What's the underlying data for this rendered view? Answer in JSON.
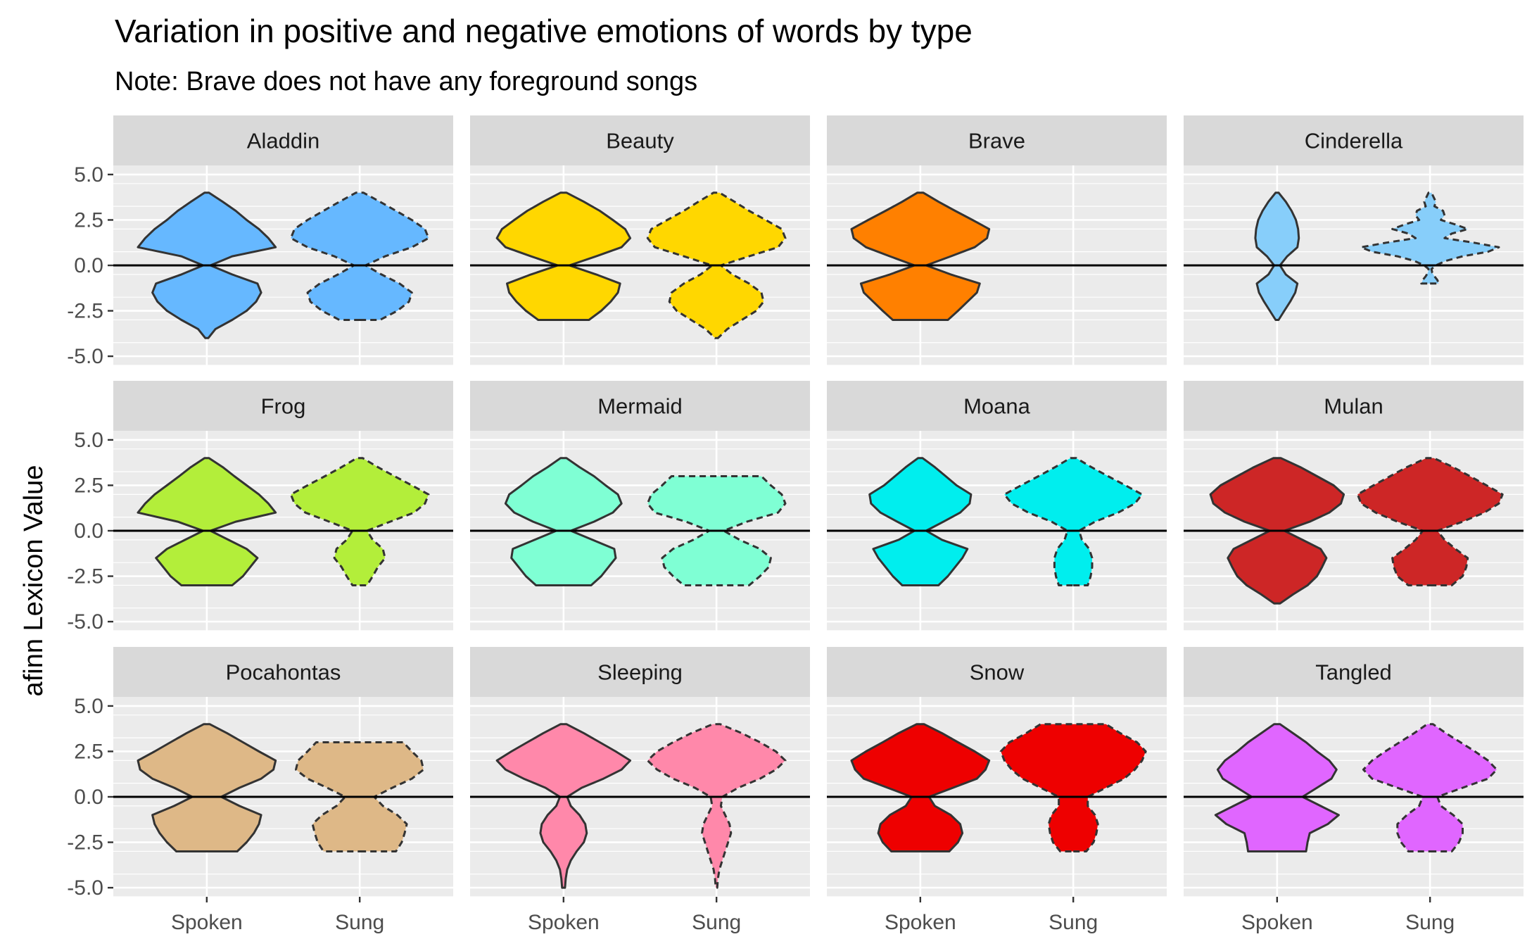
{
  "chart_data": {
    "type": "violin",
    "title": "Variation in positive and negative emotions of words by type",
    "subtitle": "Note: Brave does not have any foreground songs",
    "ylabel": "afinn Lexicon Value",
    "xlabel": "",
    "ylim": [
      -5.5,
      5.5
    ],
    "y_ticks": [
      5.0,
      2.5,
      0.0,
      -2.5,
      -5.0
    ],
    "y_tick_labels": [
      "5.0",
      "2.5",
      "0.0",
      "-2.5",
      "-5.0"
    ],
    "reference_line_y": 0,
    "categories": [
      "Spoken",
      "Sung"
    ],
    "line_styles": {
      "Spoken": "solid",
      "Sung": "dashed"
    },
    "grid": true,
    "legend": "none",
    "panels": [
      {
        "name": "Aladdin",
        "color": "#66B8FF",
        "violins": {
          "Spoken": {
            "y": [
              -4,
              -3.5,
              -3,
              -2.5,
              -2,
              -1.5,
              -1,
              -0.5,
              0,
              0.5,
              1,
              1.5,
              2,
              2.5,
              3,
              3.5,
              4
            ],
            "w": [
              0.02,
              0.12,
              0.35,
              0.55,
              0.68,
              0.75,
              0.7,
              0.35,
              0.05,
              0.35,
              0.95,
              0.85,
              0.72,
              0.55,
              0.4,
              0.22,
              0.03
            ]
          },
          "Sung": {
            "y": [
              -3,
              -2.5,
              -2,
              -1.5,
              -1,
              -0.5,
              0,
              0.5,
              1,
              1.5,
              2,
              2.5,
              3,
              3.5,
              4
            ],
            "w": [
              0.28,
              0.52,
              0.68,
              0.72,
              0.55,
              0.3,
              0.08,
              0.35,
              0.72,
              0.95,
              0.9,
              0.72,
              0.5,
              0.28,
              0.05
            ]
          }
        }
      },
      {
        "name": "Beauty",
        "color": "#FFD700",
        "violins": {
          "Spoken": {
            "y": [
              -3,
              -2.5,
              -2,
              -1.5,
              -1,
              -0.5,
              0,
              0.5,
              1,
              1.5,
              2,
              2.5,
              3,
              3.5,
              4
            ],
            "w": [
              0.35,
              0.52,
              0.65,
              0.75,
              0.78,
              0.45,
              0.08,
              0.45,
              0.8,
              0.92,
              0.85,
              0.68,
              0.5,
              0.28,
              0.04
            ]
          },
          "Sung": {
            "y": [
              -4,
              -3.5,
              -3,
              -2.5,
              -2,
              -1.5,
              -1,
              -0.5,
              0,
              0.5,
              1,
              1.5,
              2,
              2.5,
              3,
              3.5,
              4
            ],
            "w": [
              0.02,
              0.15,
              0.35,
              0.55,
              0.65,
              0.62,
              0.45,
              0.22,
              0.06,
              0.45,
              0.85,
              0.95,
              0.9,
              0.68,
              0.45,
              0.25,
              0.04
            ]
          }
        }
      },
      {
        "name": "Brave",
        "color": "#FF8000",
        "violins": {
          "Spoken": {
            "y": [
              -3,
              -2.5,
              -2,
              -1.5,
              -1,
              -0.5,
              0,
              0.5,
              1,
              1.5,
              2,
              2.5,
              3,
              3.5,
              4
            ],
            "w": [
              0.38,
              0.52,
              0.65,
              0.78,
              0.82,
              0.42,
              0.08,
              0.42,
              0.75,
              0.92,
              0.95,
              0.72,
              0.48,
              0.25,
              0.04
            ]
          }
        }
      },
      {
        "name": "Cinderella",
        "color": "#87CEFA",
        "violins": {
          "Spoken": {
            "y": [
              -3,
              -2.5,
              -2,
              -1.5,
              -1,
              -0.5,
              0,
              0.5,
              1,
              1.5,
              2,
              2.5,
              3,
              3.5,
              4
            ],
            "w": [
              0.02,
              0.1,
              0.18,
              0.25,
              0.28,
              0.12,
              0.04,
              0.14,
              0.28,
              0.3,
              0.29,
              0.26,
              0.2,
              0.12,
              0.02
            ]
          },
          "Sung": {
            "y": [
              -1,
              -0.8,
              -0.6,
              -0.4,
              -0.2,
              0,
              0.25,
              0.5,
              0.75,
              1,
              1.25,
              1.5,
              1.75,
              2,
              2.25,
              2.5,
              2.75,
              3,
              3.25,
              3.5,
              3.75,
              4
            ],
            "w": [
              0.12,
              0.1,
              0.06,
              0.03,
              0.02,
              0.08,
              0.22,
              0.45,
              0.8,
              0.95,
              0.6,
              0.2,
              0.3,
              0.52,
              0.35,
              0.15,
              0.2,
              0.18,
              0.06,
              0.08,
              0.05,
              0.02
            ]
          }
        }
      },
      {
        "name": "Frog",
        "color": "#B3EE3A",
        "violins": {
          "Spoken": {
            "y": [
              -3,
              -2.5,
              -2,
              -1.5,
              -1,
              -0.5,
              0,
              0.5,
              1,
              1.5,
              2,
              2.5,
              3,
              3.5,
              4
            ],
            "w": [
              0.35,
              0.5,
              0.6,
              0.7,
              0.55,
              0.3,
              0.05,
              0.4,
              0.95,
              0.85,
              0.72,
              0.55,
              0.38,
              0.22,
              0.03
            ]
          },
          "Sung": {
            "y": [
              -3,
              -2.5,
              -2,
              -1.5,
              -1,
              -0.5,
              0,
              0.5,
              1,
              1.5,
              2,
              2.5,
              3,
              3.5,
              4
            ],
            "w": [
              0.1,
              0.18,
              0.25,
              0.35,
              0.32,
              0.18,
              0.1,
              0.42,
              0.75,
              0.9,
              0.95,
              0.72,
              0.48,
              0.25,
              0.04
            ]
          }
        }
      },
      {
        "name": "Mermaid",
        "color": "#7FFFD4",
        "violins": {
          "Spoken": {
            "y": [
              -3,
              -2.5,
              -2,
              -1.5,
              -1,
              -0.5,
              0,
              0.5,
              1,
              1.5,
              2,
              2.5,
              3,
              3.5,
              4
            ],
            "w": [
              0.38,
              0.52,
              0.62,
              0.72,
              0.7,
              0.4,
              0.1,
              0.42,
              0.68,
              0.8,
              0.75,
              0.58,
              0.42,
              0.22,
              0.04
            ]
          },
          "Sung": {
            "y": [
              -3,
              -2.5,
              -2,
              -1.5,
              -1,
              -0.5,
              0,
              0.5,
              1,
              1.5,
              2,
              2.5,
              3
            ],
            "w": [
              0.45,
              0.6,
              0.72,
              0.75,
              0.6,
              0.32,
              0.1,
              0.42,
              0.85,
              0.95,
              0.9,
              0.75,
              0.62
            ]
          }
        }
      },
      {
        "name": "Moana",
        "color": "#00EEEE",
        "violins": {
          "Spoken": {
            "y": [
              -3,
              -2.5,
              -2,
              -1.5,
              -1,
              -0.5,
              0,
              0.5,
              1,
              1.5,
              2,
              2.5,
              3,
              3.5,
              4
            ],
            "w": [
              0.25,
              0.38,
              0.48,
              0.58,
              0.65,
              0.3,
              0.08,
              0.32,
              0.55,
              0.68,
              0.7,
              0.5,
              0.35,
              0.2,
              0.03
            ]
          },
          "Sung": {
            "y": [
              -3,
              -2.5,
              -2,
              -1.5,
              -1,
              -0.5,
              0,
              0.5,
              1,
              1.5,
              2,
              2.5,
              3,
              3.5,
              4
            ],
            "w": [
              0.2,
              0.24,
              0.26,
              0.26,
              0.22,
              0.12,
              0.08,
              0.3,
              0.62,
              0.85,
              0.95,
              0.72,
              0.48,
              0.25,
              0.04
            ]
          }
        }
      },
      {
        "name": "Mulan",
        "color": "#CD2626",
        "violins": {
          "Spoken": {
            "y": [
              -4,
              -3.5,
              -3,
              -2.5,
              -2,
              -1.5,
              -1,
              -0.5,
              0,
              0.5,
              1,
              1.5,
              2,
              2.5,
              3,
              3.5,
              4
            ],
            "w": [
              0.04,
              0.22,
              0.42,
              0.55,
              0.62,
              0.68,
              0.6,
              0.35,
              0.1,
              0.45,
              0.72,
              0.88,
              0.92,
              0.78,
              0.55,
              0.32,
              0.05
            ]
          },
          "Sung": {
            "y": [
              -3,
              -2.5,
              -2,
              -1.5,
              -1,
              -0.5,
              0,
              0.5,
              1,
              1.5,
              2,
              2.5,
              3,
              3.5,
              4
            ],
            "w": [
              0.3,
              0.45,
              0.5,
              0.52,
              0.35,
              0.2,
              0.1,
              0.45,
              0.75,
              0.95,
              1.0,
              0.78,
              0.55,
              0.32,
              0.05
            ]
          }
        }
      },
      {
        "name": "Pocahontas",
        "color": "#DEB887",
        "violins": {
          "Spoken": {
            "y": [
              -3,
              -2.5,
              -2,
              -1.5,
              -1,
              -0.5,
              0,
              0.5,
              1,
              1.5,
              2,
              2.5,
              3,
              3.5,
              4
            ],
            "w": [
              0.42,
              0.55,
              0.65,
              0.72,
              0.75,
              0.45,
              0.2,
              0.45,
              0.75,
              0.92,
              0.95,
              0.72,
              0.5,
              0.28,
              0.04
            ]
          },
          "Sung": {
            "y": [
              -3,
              -2.5,
              -2,
              -1.5,
              -1,
              -0.5,
              0,
              0.5,
              1,
              1.5,
              2,
              2.5,
              3
            ],
            "w": [
              0.5,
              0.58,
              0.62,
              0.65,
              0.52,
              0.32,
              0.2,
              0.45,
              0.72,
              0.88,
              0.85,
              0.72,
              0.6
            ]
          }
        }
      },
      {
        "name": "Sleeping",
        "color": "#FF88AA",
        "violins": {
          "Spoken": {
            "y": [
              -5,
              -4.5,
              -4,
              -3.5,
              -3,
              -2.5,
              -2,
              -1.5,
              -1,
              -0.5,
              0,
              0.5,
              1,
              1.5,
              2,
              2.5,
              3,
              3.5,
              4
            ],
            "w": [
              0.02,
              0.03,
              0.05,
              0.1,
              0.18,
              0.28,
              0.32,
              0.3,
              0.22,
              0.1,
              0.05,
              0.25,
              0.55,
              0.8,
              0.92,
              0.72,
              0.5,
              0.28,
              0.04
            ]
          },
          "Sung": {
            "y": [
              -5,
              -4.5,
              -4,
              -3.5,
              -3,
              -2.5,
              -2,
              -1.5,
              -1,
              -0.5,
              0,
              0.5,
              1,
              1.5,
              2,
              2.5,
              3,
              3.5,
              4
            ],
            "w": [
              0.01,
              0.02,
              0.04,
              0.08,
              0.12,
              0.16,
              0.2,
              0.18,
              0.12,
              0.06,
              0.08,
              0.3,
              0.6,
              0.82,
              0.95,
              0.82,
              0.6,
              0.35,
              0.05
            ]
          }
        }
      },
      {
        "name": "Snow",
        "color": "#EE0000",
        "violins": {
          "Spoken": {
            "y": [
              -3,
              -2.5,
              -2,
              -1.5,
              -1,
              -0.5,
              0,
              0.5,
              1,
              1.5,
              2,
              2.5,
              3,
              3.5,
              4
            ],
            "w": [
              0.4,
              0.52,
              0.58,
              0.55,
              0.42,
              0.2,
              0.12,
              0.45,
              0.78,
              0.9,
              0.95,
              0.75,
              0.52,
              0.3,
              0.05
            ]
          },
          "Sung": {
            "y": [
              -3,
              -2.5,
              -2,
              -1.5,
              -1,
              -0.5,
              0,
              0.5,
              1,
              1.5,
              2,
              2.5,
              3,
              3.5,
              4
            ],
            "w": [
              0.18,
              0.28,
              0.32,
              0.34,
              0.3,
              0.2,
              0.2,
              0.45,
              0.7,
              0.85,
              0.95,
              1.0,
              0.88,
              0.65,
              0.45
            ]
          }
        }
      },
      {
        "name": "Tangled",
        "color": "#E066FF",
        "violins": {
          "Spoken": {
            "y": [
              -3,
              -2.5,
              -2,
              -1.5,
              -1,
              -0.5,
              0,
              0.5,
              1,
              1.5,
              2,
              2.5,
              3,
              3.5,
              4
            ],
            "w": [
              0.4,
              0.42,
              0.45,
              0.7,
              0.85,
              0.6,
              0.35,
              0.55,
              0.75,
              0.82,
              0.72,
              0.55,
              0.4,
              0.22,
              0.04
            ]
          },
          "Sung": {
            "y": [
              -3,
              -2.5,
              -2,
              -1.5,
              -1,
              -0.5,
              0,
              0.5,
              1,
              1.5,
              2,
              2.5,
              3,
              3.5,
              4
            ],
            "w": [
              0.3,
              0.4,
              0.45,
              0.45,
              0.32,
              0.15,
              0.1,
              0.45,
              0.8,
              0.92,
              0.8,
              0.62,
              0.42,
              0.22,
              0.04
            ]
          }
        }
      }
    ]
  }
}
